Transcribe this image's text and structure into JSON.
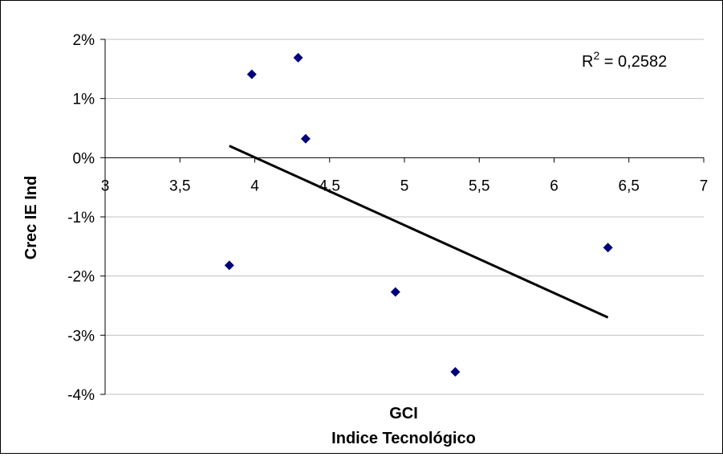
{
  "chart_data": {
    "type": "scatter",
    "x_tick_labels": [
      "3",
      "3,5",
      "4",
      "4,5",
      "5",
      "5,5",
      "6",
      "6,5",
      "7"
    ],
    "y_tick_labels": [
      "2%",
      "1%",
      "0%",
      "-1%",
      "-2%",
      "-3%",
      "-4%"
    ],
    "xlabel_line1": "GCI",
    "xlabel_line2": "Indice Tecnológico",
    "ylabel": "Crec IE Ind",
    "xlim": [
      3,
      7
    ],
    "ylim": [
      -4,
      2
    ],
    "y_unit": "%",
    "points": [
      {
        "x": 3.83,
        "y": -1.82
      },
      {
        "x": 3.98,
        "y": 1.41
      },
      {
        "x": 4.29,
        "y": 1.69
      },
      {
        "x": 4.34,
        "y": 0.32
      },
      {
        "x": 4.94,
        "y": -2.27
      },
      {
        "x": 5.34,
        "y": -3.62
      },
      {
        "x": 6.36,
        "y": -1.52
      }
    ],
    "trendline": {
      "x": [
        3.83,
        6.36
      ],
      "y": [
        0.2,
        -2.7
      ]
    },
    "r_squared": {
      "prefix": "R",
      "superscript": "2",
      "value": " = 0,2582"
    },
    "grid": true,
    "colors": {
      "marker": "#00007a",
      "trendline": "#000000",
      "grid": "#c0c0c0",
      "axis": "#000000"
    }
  }
}
